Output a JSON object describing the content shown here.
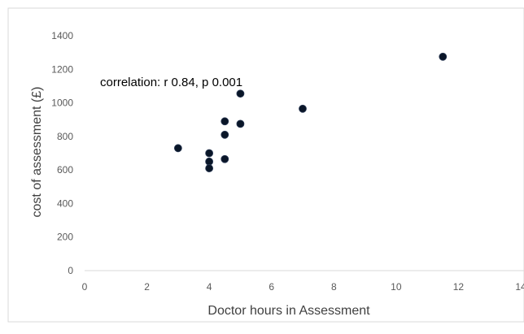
{
  "chart_data": {
    "type": "scatter",
    "title": "",
    "xlabel": "Doctor hours in Assessment",
    "ylabel": "cost of assessment (£)",
    "xlim": [
      0,
      14
    ],
    "ylim": [
      0,
      1400
    ],
    "xticks": [
      0,
      2,
      4,
      6,
      8,
      10,
      12,
      14
    ],
    "yticks": [
      0,
      200,
      400,
      600,
      800,
      1000,
      1200,
      1400
    ],
    "grid": false,
    "annotation": "correlation: r 0.84, p 0.001",
    "marker_color": "#0a1628",
    "points": [
      {
        "x": 3,
        "y": 730
      },
      {
        "x": 4,
        "y": 700
      },
      {
        "x": 4,
        "y": 650
      },
      {
        "x": 4,
        "y": 610
      },
      {
        "x": 4.5,
        "y": 890
      },
      {
        "x": 4.5,
        "y": 810
      },
      {
        "x": 4.5,
        "y": 665
      },
      {
        "x": 5,
        "y": 1055
      },
      {
        "x": 5,
        "y": 875
      },
      {
        "x": 7,
        "y": 965
      },
      {
        "x": 11.5,
        "y": 1275
      }
    ]
  }
}
